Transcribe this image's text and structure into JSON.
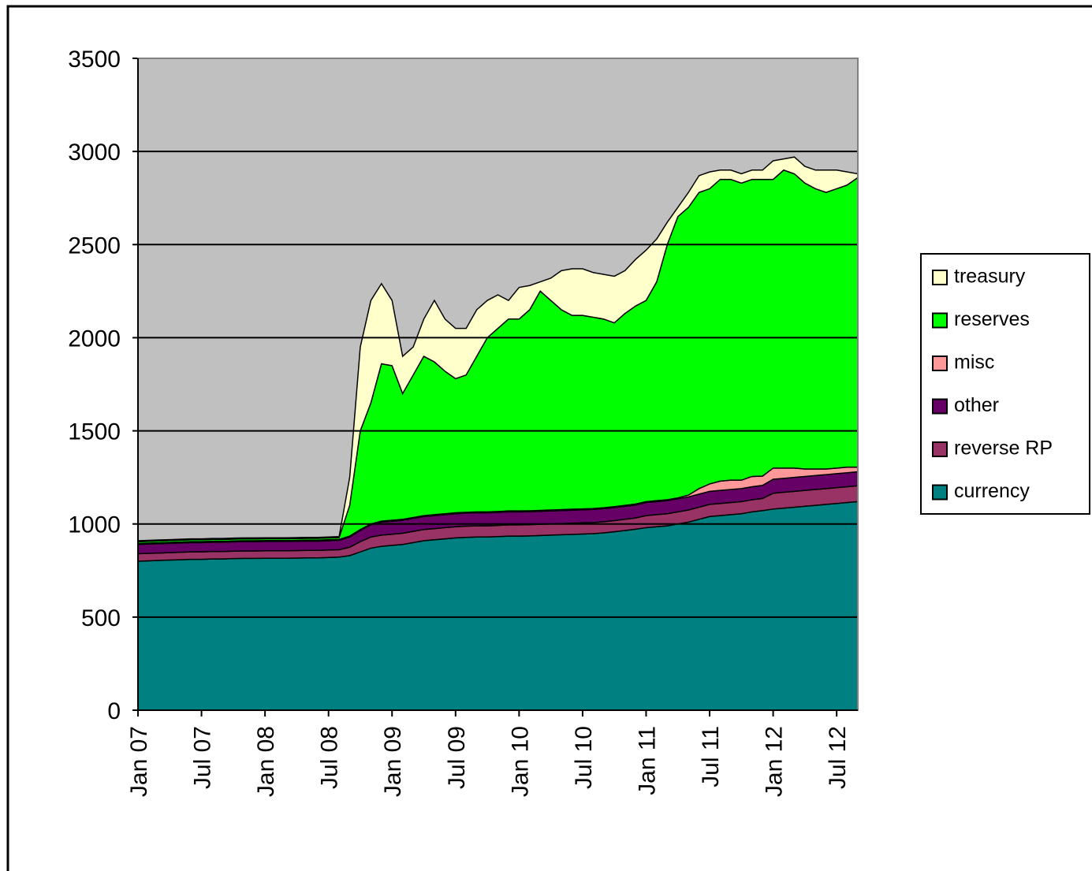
{
  "chart_data": {
    "type": "stacked-area",
    "categories": [
      "Jan 07",
      null,
      null,
      null,
      null,
      null,
      "Jul 07",
      null,
      null,
      null,
      null,
      null,
      "Jan 08",
      null,
      null,
      null,
      null,
      null,
      "Jul 08",
      null,
      null,
      null,
      null,
      null,
      "Jan 09",
      null,
      null,
      null,
      null,
      null,
      "Jul 09",
      null,
      null,
      null,
      null,
      null,
      "Jan 10",
      null,
      null,
      null,
      null,
      null,
      "Jul 10",
      null,
      null,
      null,
      null,
      null,
      "Jan 11",
      null,
      null,
      null,
      null,
      null,
      "Jul 11",
      null,
      null,
      null,
      null,
      null,
      "Jan 12",
      null,
      null,
      null,
      null,
      null,
      "Jul 12",
      null,
      null
    ],
    "series": [
      {
        "name": "currency",
        "color": "#008080",
        "values": [
          800,
          802,
          804,
          806,
          808,
          810,
          810,
          812,
          812,
          814,
          815,
          815,
          816,
          816,
          816,
          817,
          818,
          818,
          820,
          822,
          830,
          850,
          870,
          880,
          885,
          890,
          900,
          910,
          915,
          920,
          925,
          928,
          930,
          930,
          932,
          935,
          935,
          936,
          938,
          940,
          942,
          944,
          946,
          948,
          952,
          958,
          965,
          972,
          980,
          985,
          990,
          1000,
          1010,
          1025,
          1040,
          1045,
          1050,
          1055,
          1065,
          1072,
          1080,
          1085,
          1090,
          1095,
          1100,
          1105,
          1110,
          1115,
          1120
        ]
      },
      {
        "name": "reverse RP",
        "color": "#993366",
        "values": [
          40,
          40,
          40,
          40,
          40,
          40,
          40,
          40,
          40,
          40,
          40,
          40,
          40,
          40,
          40,
          40,
          40,
          40,
          40,
          40,
          45,
          55,
          60,
          60,
          60,
          60,
          60,
          60,
          60,
          60,
          60,
          60,
          60,
          60,
          60,
          60,
          60,
          60,
          60,
          60,
          60,
          60,
          60,
          60,
          60,
          60,
          60,
          60,
          65,
          65,
          65,
          65,
          65,
          65,
          65,
          65,
          65,
          65,
          65,
          65,
          85,
          85,
          85,
          85,
          85,
          85,
          85,
          85,
          85
        ]
      },
      {
        "name": "other",
        "color": "#660066",
        "values": [
          50,
          50,
          50,
          50,
          50,
          50,
          50,
          50,
          50,
          50,
          50,
          50,
          50,
          50,
          50,
          50,
          50,
          50,
          50,
          50,
          55,
          60,
          65,
          70,
          70,
          70,
          70,
          70,
          70,
          70,
          70,
          70,
          70,
          70,
          70,
          70,
          70,
          70,
          70,
          70,
          70,
          70,
          70,
          70,
          70,
          70,
          70,
          70,
          70,
          70,
          70,
          70,
          70,
          70,
          70,
          70,
          70,
          70,
          70,
          70,
          75,
          75,
          75,
          75,
          75,
          75,
          75,
          75,
          75
        ]
      },
      {
        "name": "misc",
        "color": "#ff9999",
        "values": [
          5,
          5,
          5,
          5,
          5,
          5,
          5,
          5,
          5,
          5,
          5,
          5,
          5,
          5,
          5,
          5,
          5,
          5,
          5,
          5,
          5,
          5,
          5,
          5,
          5,
          5,
          5,
          5,
          5,
          5,
          5,
          5,
          5,
          5,
          5,
          5,
          5,
          5,
          5,
          5,
          5,
          5,
          5,
          5,
          5,
          5,
          5,
          5,
          5,
          5,
          5,
          5,
          10,
          30,
          40,
          50,
          50,
          45,
          55,
          50,
          60,
          55,
          50,
          40,
          35,
          30,
          30,
          30,
          25
        ]
      },
      {
        "name": "reserves",
        "color": "#00ff00",
        "values": [
          10,
          10,
          10,
          10,
          10,
          10,
          10,
          10,
          10,
          10,
          10,
          10,
          10,
          10,
          10,
          10,
          10,
          10,
          10,
          10,
          165,
          530,
          650,
          845,
          830,
          675,
          765,
          855,
          820,
          765,
          720,
          737,
          835,
          935,
          983,
          1030,
          1030,
          1079,
          1177,
          1125,
          1073,
          1041,
          1039,
          1027,
          1013,
          987,
          1030,
          1063,
          1080,
          1175,
          1370,
          1510,
          1545,
          1590,
          1585,
          1620,
          1615,
          1595,
          1595,
          1593,
          1550,
          1600,
          1580,
          1535,
          1505,
          1485,
          1500,
          1515,
          1555
        ]
      },
      {
        "name": "treasury",
        "color": "#ffffcc",
        "values": [
          5,
          5,
          5,
          5,
          5,
          5,
          5,
          5,
          5,
          5,
          5,
          5,
          5,
          5,
          5,
          5,
          5,
          5,
          5,
          5,
          150,
          450,
          550,
          430,
          350,
          200,
          150,
          200,
          330,
          280,
          270,
          250,
          250,
          200,
          180,
          100,
          170,
          130,
          50,
          120,
          210,
          250,
          250,
          240,
          240,
          250,
          230,
          250,
          270,
          230,
          120,
          50,
          80,
          90,
          90,
          50,
          50,
          50,
          50,
          50,
          100,
          60,
          90,
          90,
          100,
          120,
          100,
          70,
          20
        ]
      }
    ],
    "ylim": [
      0,
      3500
    ],
    "yticks": [
      0,
      500,
      1000,
      1500,
      2000,
      2500,
      3000,
      3500
    ],
    "grid": true,
    "legend": "right",
    "plot_background": "#c0c0c0"
  }
}
